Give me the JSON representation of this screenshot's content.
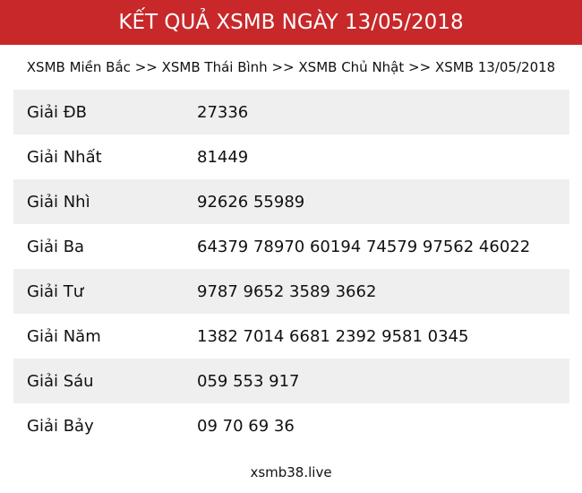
{
  "header": {
    "title": "KẾT QUẢ XSMB NGÀY 13/05/2018",
    "background": "#c8282a"
  },
  "breadcrumb": {
    "items": [
      "XSMB Miền Bắc",
      "XSMB Thái Bình",
      "XSMB Chủ Nhật",
      "XSMB 13/05/2018"
    ],
    "separator": ">>"
  },
  "results": [
    {
      "label": "Giải ĐB",
      "value": "27336"
    },
    {
      "label": "Giải Nhất",
      "value": "81449"
    },
    {
      "label": "Giải Nhì",
      "value": "92626 55989"
    },
    {
      "label": "Giải Ba",
      "value": "64379 78970 60194 74579 97562 46022"
    },
    {
      "label": "Giải Tư",
      "value": "9787 9652 3589 3662"
    },
    {
      "label": "Giải Năm",
      "value": "1382 7014 6681 2392 9581 0345"
    },
    {
      "label": "Giải Sáu",
      "value": "059 553 917"
    },
    {
      "label": "Giải Bảy",
      "value": "09 70 69 36"
    }
  ],
  "footer": {
    "text": "xsmb38.live"
  }
}
